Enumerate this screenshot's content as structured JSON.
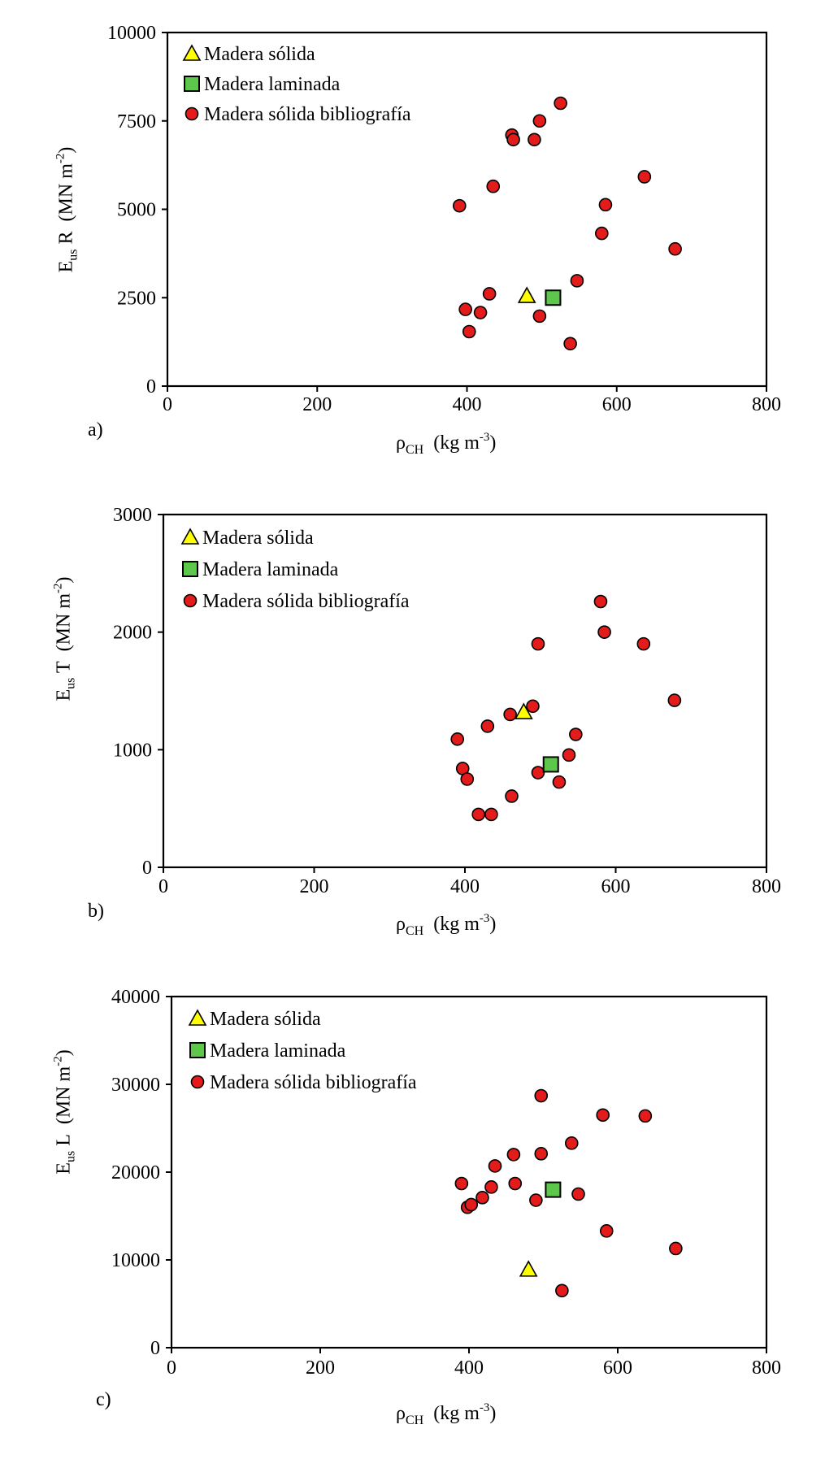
{
  "chart_data": [
    {
      "type": "scatter",
      "panel_label": "a)",
      "xlabel": {
        "symbol": "ρ",
        "sub": "CH",
        "unit": "(kg m",
        "exp": "-3",
        "close": ")"
      },
      "ylabel": {
        "base": "E",
        "sub": "us",
        "axis": "R",
        "unit": "(MN m",
        "exp": "-2",
        "close": ")"
      },
      "xlim": [
        0,
        800
      ],
      "ylim": [
        0,
        10000
      ],
      "xticks": [
        0,
        200,
        400,
        600,
        800
      ],
      "yticks": [
        0,
        2500,
        5000,
        7500,
        10000
      ],
      "legend_position": "top-left",
      "series": [
        {
          "name": "Madera sólida",
          "marker": "triangle",
          "color": "#ffff00",
          "points": [
            [
              480,
              2550
            ]
          ]
        },
        {
          "name": "Madera laminada",
          "marker": "square",
          "color": "#5cc74a",
          "points": [
            [
              515,
              2500
            ]
          ]
        },
        {
          "name": "Madera sólida bibliografía",
          "marker": "circle",
          "color": "#e31b1b",
          "points": [
            [
              390,
              5100
            ],
            [
              398,
              2170
            ],
            [
              403,
              1540
            ],
            [
              418,
              2080
            ],
            [
              430,
              2610
            ],
            [
              435,
              5650
            ],
            [
              460,
              7100
            ],
            [
              462,
              6970
            ],
            [
              490,
              6970
            ],
            [
              497,
              7500
            ],
            [
              497,
              1980
            ],
            [
              525,
              8000
            ],
            [
              538,
              1200
            ],
            [
              547,
              2980
            ],
            [
              580,
              4320
            ],
            [
              585,
              5130
            ],
            [
              637,
              5920
            ],
            [
              678,
              3880
            ]
          ]
        }
      ]
    },
    {
      "type": "scatter",
      "panel_label": "b)",
      "xlabel": {
        "symbol": "ρ",
        "sub": "CH",
        "unit": "(kg m",
        "exp": "-3",
        "close": ")"
      },
      "ylabel": {
        "base": "E",
        "sub": "us",
        "axis": "T",
        "unit": "(MN m",
        "exp": "-2",
        "close": ")"
      },
      "xlim": [
        0,
        800
      ],
      "ylim": [
        0,
        3000
      ],
      "xticks": [
        0,
        200,
        400,
        600,
        800
      ],
      "yticks": [
        0,
        1000,
        2000,
        3000
      ],
      "legend_position": "top-left",
      "series": [
        {
          "name": "Madera sólida",
          "marker": "triangle",
          "color": "#ffff00",
          "points": [
            [
              478,
              1320
            ]
          ]
        },
        {
          "name": "Madera laminada",
          "marker": "square",
          "color": "#5cc74a",
          "points": [
            [
              514,
              875
            ]
          ]
        },
        {
          "name": "Madera sólida bibliografía",
          "marker": "circle",
          "color": "#e31b1b",
          "points": [
            [
              390,
              1090
            ],
            [
              397,
              840
            ],
            [
              403,
              750
            ],
            [
              418,
              450
            ],
            [
              430,
              1200
            ],
            [
              435,
              450
            ],
            [
              460,
              1300
            ],
            [
              462,
              605
            ],
            [
              490,
              1370
            ],
            [
              497,
              1900
            ],
            [
              497,
              805
            ],
            [
              525,
              725
            ],
            [
              538,
              955
            ],
            [
              547,
              1130
            ],
            [
              580,
              2260
            ],
            [
              585,
              2000
            ],
            [
              637,
              1900
            ],
            [
              678,
              1420
            ]
          ]
        }
      ]
    },
    {
      "type": "scatter",
      "panel_label": "c)",
      "xlabel": {
        "symbol": "ρ",
        "sub": "CH",
        "unit": "(kg m",
        "exp": "-3",
        "close": ")"
      },
      "ylabel": {
        "base": "E",
        "sub": "us",
        "axis": "L",
        "unit": "(MN m",
        "exp": "-2",
        "close": ")"
      },
      "xlim": [
        0,
        800
      ],
      "ylim": [
        0,
        40000
      ],
      "xticks": [
        0,
        200,
        400,
        600,
        800
      ],
      "yticks": [
        0,
        10000,
        20000,
        30000,
        40000
      ],
      "legend_position": "top-left",
      "series": [
        {
          "name": "Madera sólida",
          "marker": "triangle",
          "color": "#ffff00",
          "points": [
            [
              480,
              8900
            ]
          ]
        },
        {
          "name": "Madera laminada",
          "marker": "square",
          "color": "#5cc74a",
          "points": [
            [
              513,
              18000
            ]
          ]
        },
        {
          "name": "Madera sólida bibliografía",
          "marker": "circle",
          "color": "#e31b1b",
          "points": [
            [
              390,
              18700
            ],
            [
              398,
              16000
            ],
            [
              403,
              16300
            ],
            [
              418,
              17100
            ],
            [
              430,
              18300
            ],
            [
              435,
              20700
            ],
            [
              460,
              22000
            ],
            [
              462,
              18700
            ],
            [
              490,
              16800
            ],
            [
              497,
              28700
            ],
            [
              497,
              22100
            ],
            [
              525,
              6500
            ],
            [
              538,
              23300
            ],
            [
              547,
              17500
            ],
            [
              580,
              26500
            ],
            [
              585,
              13300
            ],
            [
              637,
              26400
            ],
            [
              678,
              11300
            ]
          ]
        }
      ]
    }
  ]
}
